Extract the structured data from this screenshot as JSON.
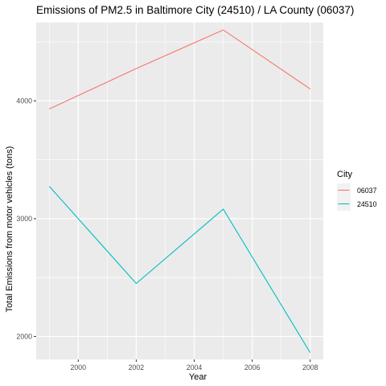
{
  "chart_data": {
    "type": "line",
    "title": "Emissions of PM2.5 in Baltimore City (24510) / LA County (06037)",
    "xlabel": "Year",
    "ylabel": "Total Emissions from motor vehicles (tons)",
    "xlim": [
      1998.55,
      2008.45
    ],
    "ylim": [
      1805,
      4665
    ],
    "x_ticks": [
      2000,
      2002,
      2004,
      2006,
      2008
    ],
    "x_tick_labels": [
      "2000",
      "2002",
      "2004",
      "2006",
      "2008"
    ],
    "y_ticks": [
      2000,
      3000,
      4000
    ],
    "y_tick_labels": [
      "2000",
      "3000",
      "4000"
    ],
    "grid": true,
    "legend_title": "City",
    "legend_position": "right",
    "x": [
      1999,
      2002,
      2005,
      2008
    ],
    "series": [
      {
        "name": "06037",
        "values": [
          3931,
          4274,
          4602,
          4101
        ],
        "color": "#F8766D"
      },
      {
        "name": "24510",
        "values": [
          3275,
          2450,
          3081,
          1862
        ],
        "color": "#00BFC4"
      }
    ]
  }
}
